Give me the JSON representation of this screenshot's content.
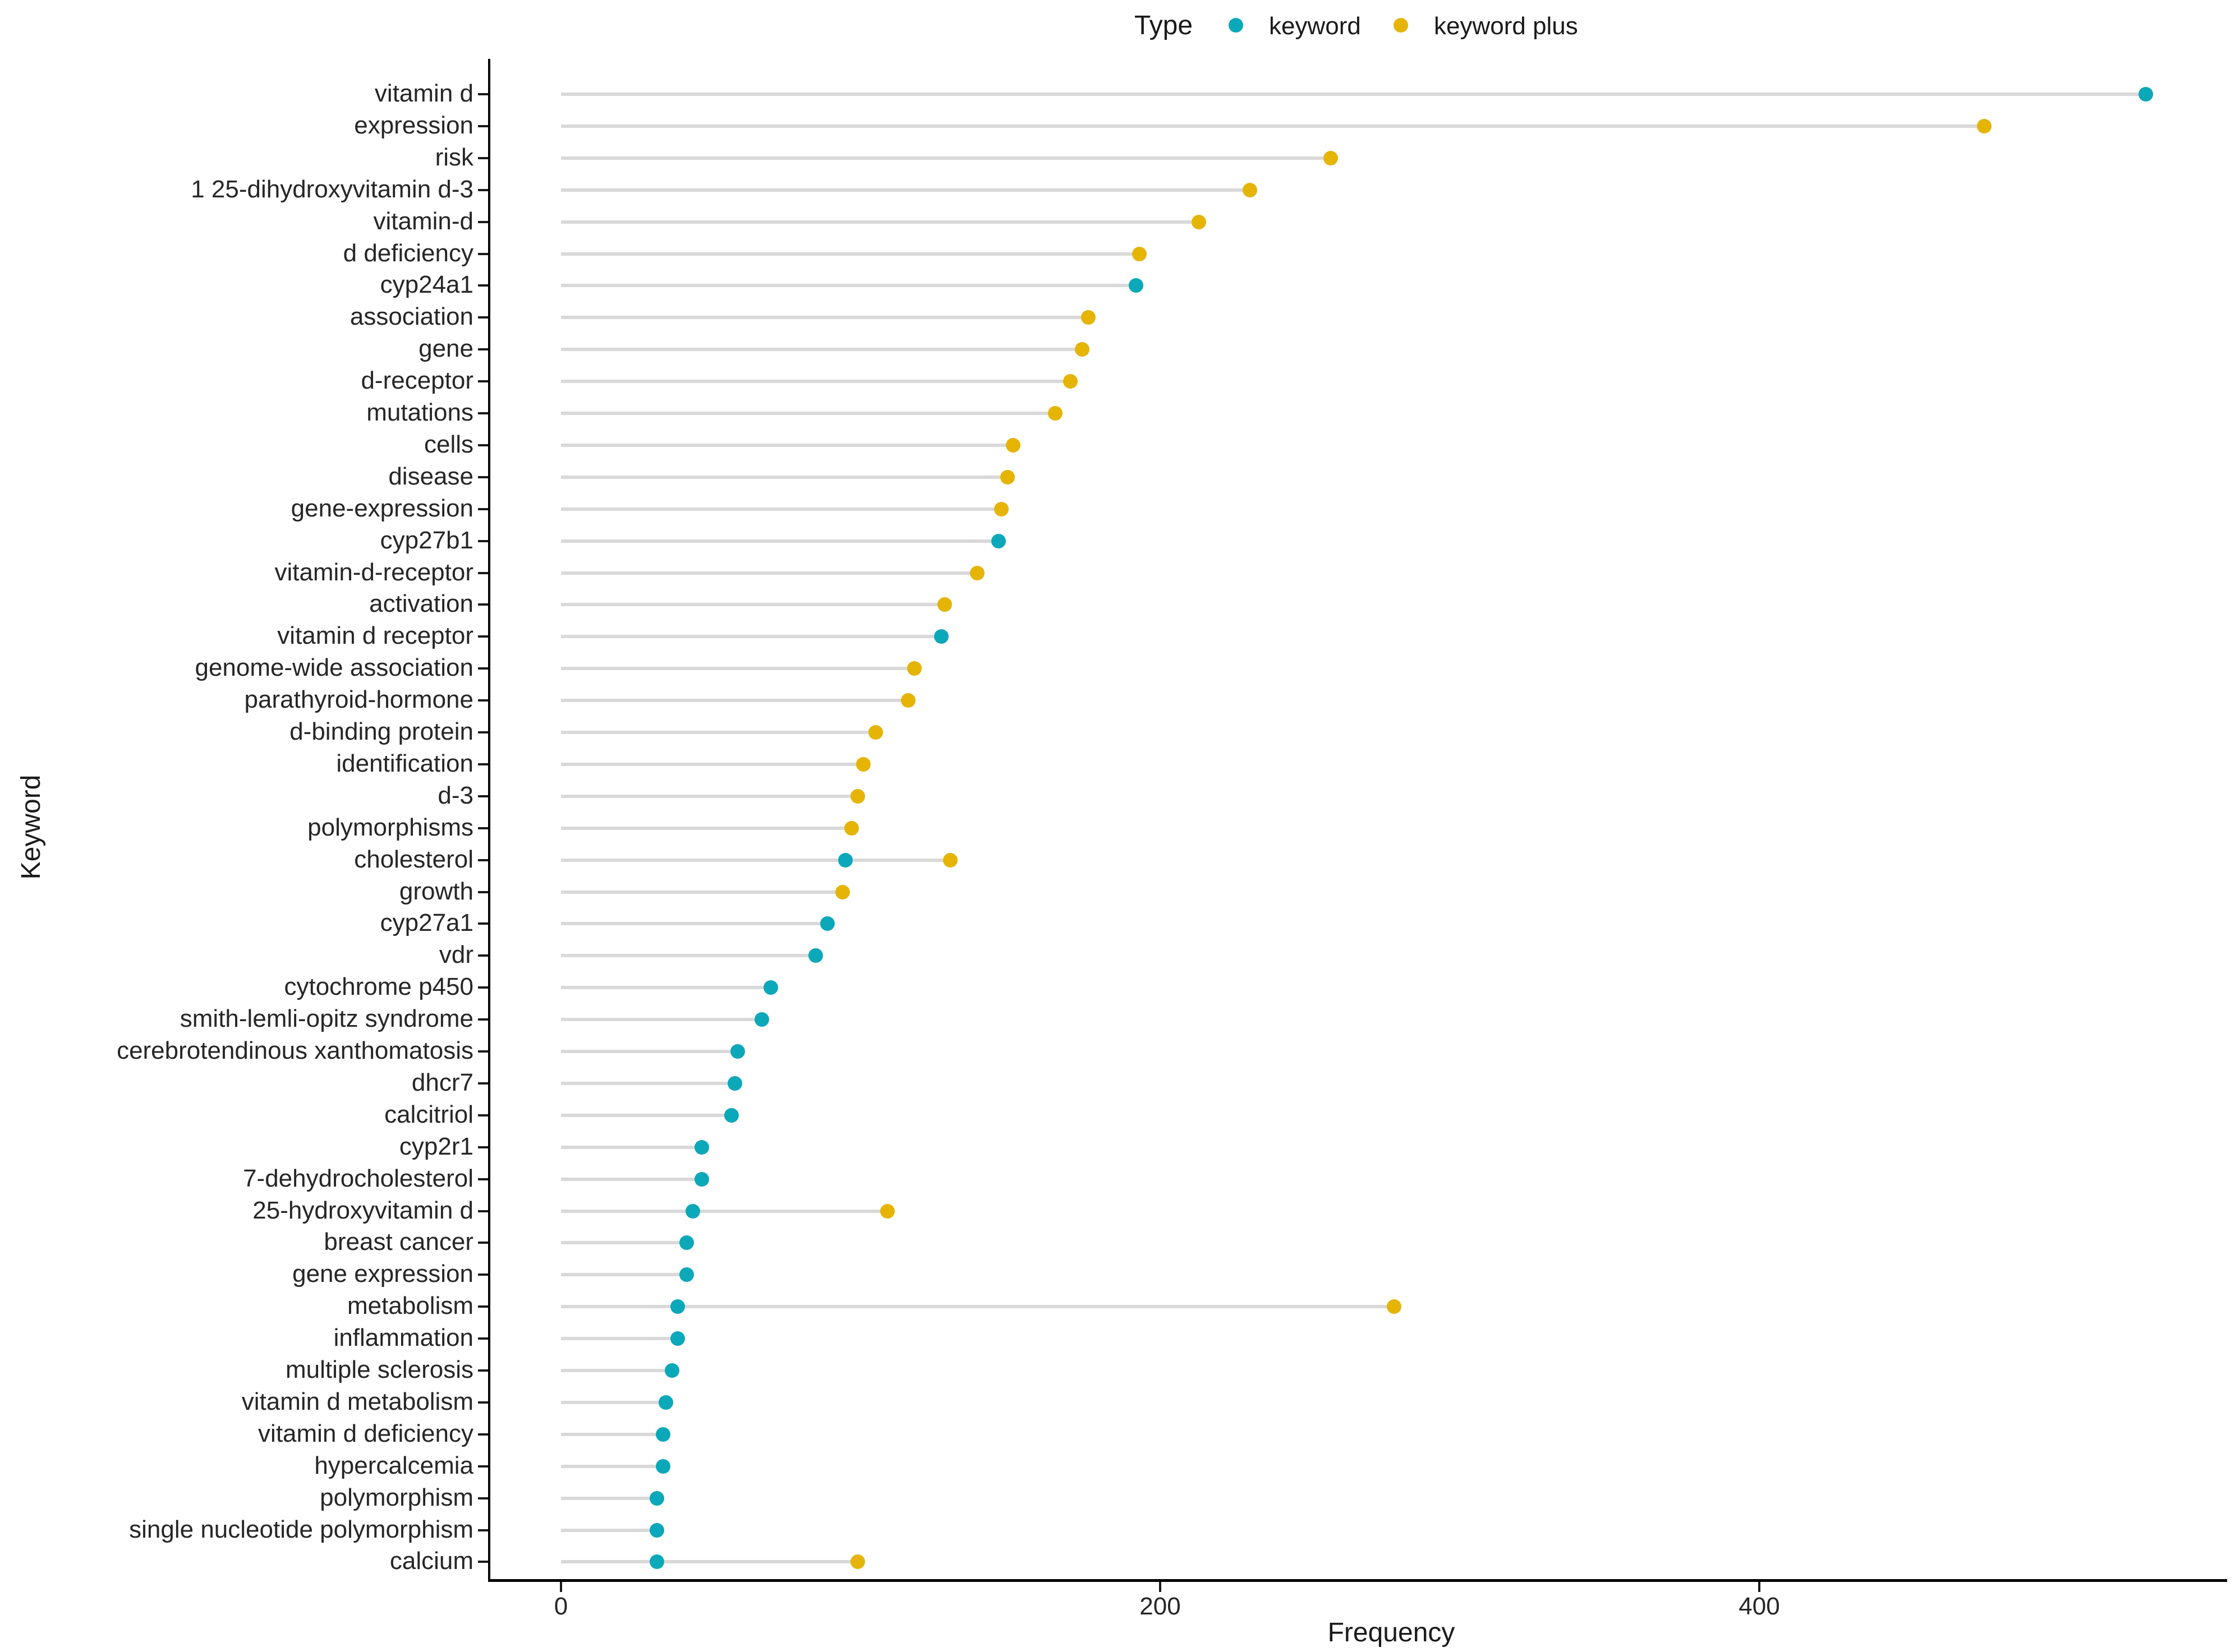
{
  "legend": {
    "title": "Type",
    "items": [
      {
        "label": "keyword",
        "color": "#0ba8b9"
      },
      {
        "label": "keyword plus",
        "color": "#e5b405"
      }
    ]
  },
  "axes": {
    "x_title": "Frequency",
    "y_title": "Keyword",
    "x_ticks": [
      0,
      200,
      400
    ]
  },
  "chart_data": {
    "type": "scatter",
    "subtype": "horizontal-lollipop-dot-plot",
    "xlabel": "Frequency",
    "ylabel": "Keyword",
    "xlim": [
      0,
      555
    ],
    "grid": false,
    "legend_position": "top",
    "series_names": [
      "keyword",
      "keyword plus"
    ],
    "colors": {
      "keyword": "#0ba8b9",
      "keyword plus": "#e5b405"
    },
    "stem_color": "#d9d9d9",
    "rows": [
      {
        "label": "vitamin d",
        "points": [
          {
            "type": "keyword",
            "value": 529
          }
        ]
      },
      {
        "label": "expression",
        "points": [
          {
            "type": "keyword plus",
            "value": 475
          }
        ]
      },
      {
        "label": "risk",
        "points": [
          {
            "type": "keyword plus",
            "value": 257
          }
        ]
      },
      {
        "label": "1 25-dihydroxyvitamin d-3",
        "points": [
          {
            "type": "keyword plus",
            "value": 230
          }
        ]
      },
      {
        "label": "vitamin-d",
        "points": [
          {
            "type": "keyword plus",
            "value": 213
          }
        ]
      },
      {
        "label": "d deficiency",
        "points": [
          {
            "type": "keyword plus",
            "value": 193
          }
        ]
      },
      {
        "label": "cyp24a1",
        "points": [
          {
            "type": "keyword",
            "value": 192
          }
        ]
      },
      {
        "label": "association",
        "points": [
          {
            "type": "keyword plus",
            "value": 176
          }
        ]
      },
      {
        "label": "gene",
        "points": [
          {
            "type": "keyword plus",
            "value": 174
          }
        ]
      },
      {
        "label": "d-receptor",
        "points": [
          {
            "type": "keyword plus",
            "value": 170
          }
        ]
      },
      {
        "label": "mutations",
        "points": [
          {
            "type": "keyword plus",
            "value": 165
          }
        ]
      },
      {
        "label": "cells",
        "points": [
          {
            "type": "keyword plus",
            "value": 151
          }
        ]
      },
      {
        "label": "disease",
        "points": [
          {
            "type": "keyword plus",
            "value": 149
          }
        ]
      },
      {
        "label": "gene-expression",
        "points": [
          {
            "type": "keyword plus",
            "value": 147
          }
        ]
      },
      {
        "label": "cyp27b1",
        "points": [
          {
            "type": "keyword",
            "value": 146
          }
        ]
      },
      {
        "label": "vitamin-d-receptor",
        "points": [
          {
            "type": "keyword plus",
            "value": 139
          }
        ]
      },
      {
        "label": "activation",
        "points": [
          {
            "type": "keyword plus",
            "value": 128
          }
        ]
      },
      {
        "label": "vitamin d receptor",
        "points": [
          {
            "type": "keyword",
            "value": 127
          }
        ]
      },
      {
        "label": "genome-wide association",
        "points": [
          {
            "type": "keyword plus",
            "value": 118
          }
        ]
      },
      {
        "label": "parathyroid-hormone",
        "points": [
          {
            "type": "keyword plus",
            "value": 116
          }
        ]
      },
      {
        "label": "d-binding protein",
        "points": [
          {
            "type": "keyword plus",
            "value": 105
          }
        ]
      },
      {
        "label": "identification",
        "points": [
          {
            "type": "keyword plus",
            "value": 101
          }
        ]
      },
      {
        "label": "d-3",
        "points": [
          {
            "type": "keyword plus",
            "value": 99
          }
        ]
      },
      {
        "label": "polymorphisms",
        "points": [
          {
            "type": "keyword plus",
            "value": 97
          }
        ]
      },
      {
        "label": "cholesterol",
        "points": [
          {
            "type": "keyword",
            "value": 95
          },
          {
            "type": "keyword plus",
            "value": 130
          }
        ]
      },
      {
        "label": "growth",
        "points": [
          {
            "type": "keyword plus",
            "value": 94
          }
        ]
      },
      {
        "label": "cyp27a1",
        "points": [
          {
            "type": "keyword",
            "value": 89
          }
        ]
      },
      {
        "label": "vdr",
        "points": [
          {
            "type": "keyword",
            "value": 85
          }
        ]
      },
      {
        "label": "cytochrome p450",
        "points": [
          {
            "type": "keyword",
            "value": 70
          }
        ]
      },
      {
        "label": "smith-lemli-opitz syndrome",
        "points": [
          {
            "type": "keyword",
            "value": 67
          }
        ]
      },
      {
        "label": "cerebrotendinous xanthomatosis",
        "points": [
          {
            "type": "keyword",
            "value": 59
          }
        ]
      },
      {
        "label": "dhcr7",
        "points": [
          {
            "type": "keyword",
            "value": 58
          }
        ]
      },
      {
        "label": "calcitriol",
        "points": [
          {
            "type": "keyword",
            "value": 57
          }
        ]
      },
      {
        "label": "cyp2r1",
        "points": [
          {
            "type": "keyword",
            "value": 47
          }
        ]
      },
      {
        "label": "7-dehydrocholesterol",
        "points": [
          {
            "type": "keyword",
            "value": 47
          }
        ]
      },
      {
        "label": "25-hydroxyvitamin d",
        "points": [
          {
            "type": "keyword",
            "value": 44
          },
          {
            "type": "keyword plus",
            "value": 109
          }
        ]
      },
      {
        "label": "breast cancer",
        "points": [
          {
            "type": "keyword",
            "value": 42
          }
        ]
      },
      {
        "label": "gene expression",
        "points": [
          {
            "type": "keyword",
            "value": 42
          }
        ]
      },
      {
        "label": "metabolism",
        "points": [
          {
            "type": "keyword",
            "value": 39
          },
          {
            "type": "keyword plus",
            "value": 278
          }
        ]
      },
      {
        "label": "inflammation",
        "points": [
          {
            "type": "keyword",
            "value": 39
          }
        ]
      },
      {
        "label": "multiple sclerosis",
        "points": [
          {
            "type": "keyword",
            "value": 37
          }
        ]
      },
      {
        "label": "vitamin d metabolism",
        "points": [
          {
            "type": "keyword",
            "value": 35
          }
        ]
      },
      {
        "label": "vitamin d deficiency",
        "points": [
          {
            "type": "keyword",
            "value": 34
          }
        ]
      },
      {
        "label": "hypercalcemia",
        "points": [
          {
            "type": "keyword",
            "value": 34
          }
        ]
      },
      {
        "label": "polymorphism",
        "points": [
          {
            "type": "keyword",
            "value": 32
          }
        ]
      },
      {
        "label": "single nucleotide polymorphism",
        "points": [
          {
            "type": "keyword",
            "value": 32
          }
        ]
      },
      {
        "label": "calcium",
        "points": [
          {
            "type": "keyword",
            "value": 32
          },
          {
            "type": "keyword plus",
            "value": 99
          }
        ]
      }
    ]
  }
}
